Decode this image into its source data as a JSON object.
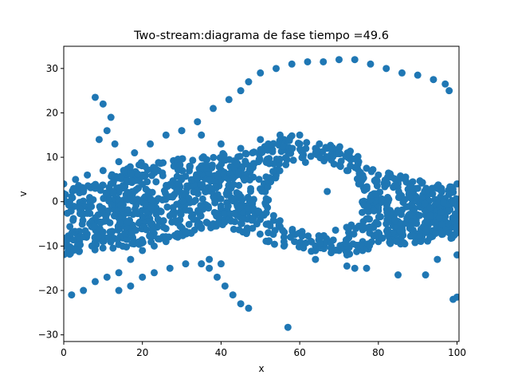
{
  "chart_data": {
    "type": "scatter",
    "title": "Two-stream:diagrama de fase  tiempo =49.6",
    "xlabel": "x",
    "ylabel": "v",
    "xlim": [
      0,
      100.5
    ],
    "ylim": [
      -31.5,
      35
    ],
    "xticks": [
      0,
      20,
      40,
      60,
      80,
      100
    ],
    "yticks": [
      -30,
      -20,
      -10,
      0,
      10,
      20,
      30
    ],
    "xtick_labels": [
      "0",
      "20",
      "40",
      "60",
      "80",
      "100"
    ],
    "ytick_labels": [
      "−30",
      "−20",
      "−10",
      "0",
      "10",
      "20",
      "30"
    ],
    "marker_color": "#1f77b4",
    "grid": false,
    "series": [
      {
        "points": [
          [
            0,
            4
          ],
          [
            3,
            5
          ],
          [
            6,
            6
          ],
          [
            10,
            7
          ],
          [
            14,
            9
          ],
          [
            18,
            11
          ],
          [
            22,
            13
          ],
          [
            26,
            15
          ],
          [
            30,
            16
          ],
          [
            35,
            15
          ],
          [
            40,
            13
          ],
          [
            45,
            12
          ],
          [
            50,
            14
          ],
          [
            55,
            15
          ],
          [
            60,
            15
          ],
          [
            65,
            13
          ],
          [
            70,
            12
          ],
          [
            75,
            9
          ],
          [
            80,
            6
          ],
          [
            85,
            4
          ],
          [
            90,
            3
          ],
          [
            95,
            3
          ],
          [
            100,
            4
          ],
          [
            47,
            27
          ],
          [
            50,
            29
          ],
          [
            54,
            30
          ],
          [
            58,
            31
          ],
          [
            62,
            31.5
          ],
          [
            66,
            31.5
          ],
          [
            70,
            32
          ],
          [
            74,
            32
          ],
          [
            78,
            31
          ],
          [
            82,
            30
          ],
          [
            86,
            29
          ],
          [
            90,
            28.5
          ],
          [
            94,
            27.5
          ],
          [
            97,
            26.5
          ],
          [
            98,
            25
          ],
          [
            45,
            25
          ],
          [
            42,
            23
          ],
          [
            38,
            21
          ],
          [
            34,
            18
          ],
          [
            30,
            16
          ],
          [
            8,
            23.5
          ],
          [
            10,
            22
          ],
          [
            12,
            19
          ],
          [
            9,
            14
          ],
          [
            11,
            16
          ],
          [
            13,
            13
          ],
          [
            2,
            -21
          ],
          [
            5,
            -20
          ],
          [
            8,
            -18
          ],
          [
            11,
            -17
          ],
          [
            14,
            -16
          ],
          [
            17,
            -13
          ],
          [
            20,
            -11
          ],
          [
            23,
            -10
          ],
          [
            26,
            -9
          ],
          [
            29,
            -8
          ],
          [
            32,
            -7
          ],
          [
            35,
            -6
          ],
          [
            38,
            -5
          ],
          [
            42,
            -4
          ],
          [
            14,
            -20
          ],
          [
            17,
            -19
          ],
          [
            20,
            -17
          ],
          [
            23,
            -16
          ],
          [
            27,
            -15
          ],
          [
            31,
            -14
          ],
          [
            35,
            -14
          ],
          [
            37,
            -15
          ],
          [
            39,
            -17
          ],
          [
            41,
            -19
          ],
          [
            43,
            -21
          ],
          [
            45,
            -23
          ],
          [
            47,
            -24
          ],
          [
            37,
            -13
          ],
          [
            40,
            -14
          ],
          [
            57,
            -28.3
          ],
          [
            67,
            2.3
          ],
          [
            85,
            -16.5
          ],
          [
            92,
            -16.5
          ],
          [
            99,
            -22
          ],
          [
            100,
            -21.5
          ],
          [
            95,
            -13
          ],
          [
            100,
            -12
          ],
          [
            64,
            -13
          ],
          [
            72,
            -14.5
          ],
          [
            77,
            -15
          ],
          [
            74,
            -15
          ],
          [
            0,
            0
          ],
          [
            4,
            2
          ],
          [
            8,
            3
          ],
          [
            12,
            4
          ],
          [
            16,
            5
          ],
          [
            20,
            6
          ],
          [
            24,
            7
          ],
          [
            28,
            8
          ],
          [
            32,
            8
          ],
          [
            36,
            7
          ],
          [
            40,
            5
          ],
          [
            44,
            2
          ],
          [
            48,
            -2
          ],
          [
            52,
            -5
          ],
          [
            56,
            -8
          ],
          [
            60,
            -10
          ],
          [
            64,
            -11
          ],
          [
            68,
            -11.5
          ],
          [
            72,
            -12
          ],
          [
            76,
            -11
          ],
          [
            80,
            -9
          ],
          [
            84,
            -7
          ],
          [
            88,
            -6
          ],
          [
            92,
            -5
          ],
          [
            96,
            -4
          ],
          [
            100,
            -3
          ],
          [
            0,
            -10
          ],
          [
            4,
            -9
          ],
          [
            8,
            -8
          ],
          [
            12,
            -7
          ],
          [
            16,
            -6
          ],
          [
            20,
            -5
          ],
          [
            24,
            -4
          ],
          [
            28,
            -3
          ],
          [
            32,
            -2
          ],
          [
            36,
            -1
          ],
          [
            40,
            -1
          ],
          [
            44,
            -3
          ],
          [
            48,
            -6
          ],
          [
            52,
            -9
          ],
          [
            56,
            -10
          ],
          [
            60,
            -10
          ],
          [
            64,
            -10
          ],
          [
            68,
            -10
          ],
          [
            72,
            -10
          ],
          [
            76,
            -9
          ],
          [
            80,
            -7
          ],
          [
            84,
            -5
          ],
          [
            88,
            -4
          ],
          [
            92,
            -3
          ],
          [
            96,
            -2
          ],
          [
            100,
            -1
          ],
          [
            44,
            8
          ],
          [
            48,
            11
          ],
          [
            52,
            13
          ],
          [
            56,
            14
          ],
          [
            60,
            13
          ],
          [
            64,
            12
          ],
          [
            68,
            10
          ],
          [
            72,
            7
          ],
          [
            75,
            4
          ],
          [
            78,
            1
          ],
          [
            80,
            -2
          ],
          [
            82,
            -5
          ],
          [
            84,
            -7
          ],
          [
            42,
            5
          ],
          [
            44,
            2
          ],
          [
            46,
            -1
          ],
          [
            48,
            -4
          ],
          [
            52,
            -7
          ],
          [
            56,
            -9
          ],
          [
            60,
            -10
          ],
          [
            64,
            -11
          ],
          [
            70,
            -11
          ],
          [
            76,
            -10
          ],
          [
            80,
            -8
          ]
        ],
        "bands": [
          {
            "x0": 0,
            "x1": 20,
            "ymin0": -12,
            "ymax0": 3,
            "ymin1": -10,
            "ymax1": 9
          },
          {
            "x0": 20,
            "x1": 42,
            "ymin0": -10,
            "ymax0": 9,
            "ymin1": -5,
            "ymax1": 11
          },
          {
            "x0": 42,
            "x1": 58,
            "ymin0": -6,
            "ymax0": 10,
            "ymin1": -11,
            "ymax1": 15
          },
          {
            "x0": 58,
            "x1": 75,
            "ymin0": -11,
            "ymax0": 15,
            "ymin1": -12,
            "ymax1": 12
          },
          {
            "x0": 75,
            "x1": 100.5,
            "ymin0": -11,
            "ymax0": 8,
            "ymin1": -8,
            "ymax1": 3
          }
        ],
        "hole": {
          "cx": 64,
          "cy": 1,
          "rx": 12,
          "ry": 8
        }
      }
    ]
  }
}
